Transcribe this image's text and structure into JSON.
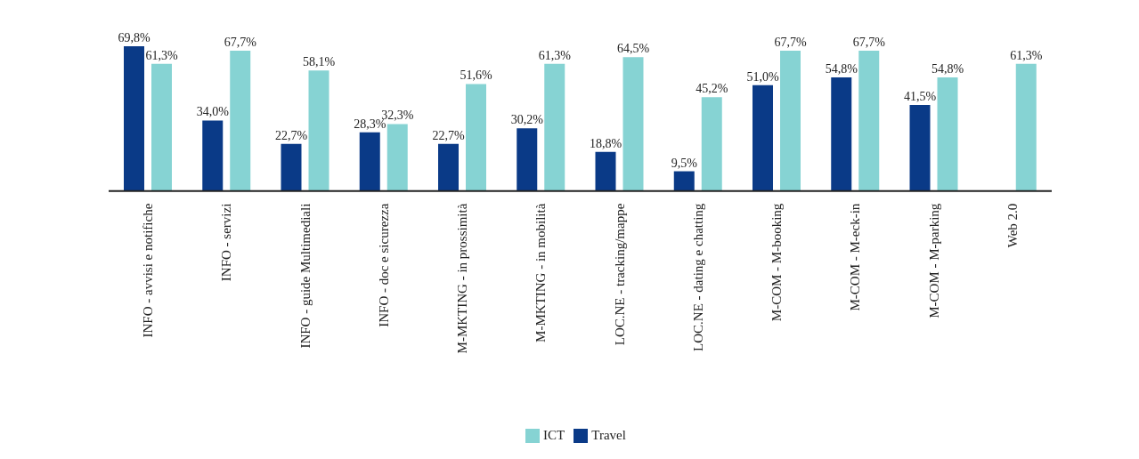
{
  "chart_data": {
    "type": "bar",
    "categories": [
      "INFO - avvisi e notifiche",
      "INFO - servizi",
      "INFO - guide Multimediali",
      "INFO - doc e sicurezza",
      "M-MKTING - in prossimità",
      "M-MKTING - in mobilità",
      "LOC.NE - tracking/mappe",
      "LOC.NE - dating e chatting",
      "M-COM - M-booking",
      "M-COM - M-eck-in",
      "M-COM - M-parking",
      "Web 2.0"
    ],
    "series": [
      {
        "name": "Travel",
        "color": "#0a3a87",
        "values": [
          69.8,
          34.0,
          22.7,
          28.3,
          22.7,
          30.2,
          18.8,
          9.5,
          51.0,
          54.8,
          41.5,
          null
        ],
        "value_labels": [
          "69,8%",
          "34,0%",
          "22,7%",
          "28,3%",
          "22,7%",
          "30,2%",
          "18,8%",
          "9,5%",
          "51,0%",
          "54,8%",
          "41,5%",
          null
        ]
      },
      {
        "name": "ICT",
        "color": "#86d3d3",
        "values": [
          61.3,
          67.7,
          58.1,
          32.3,
          51.6,
          61.3,
          64.5,
          45.2,
          67.7,
          67.7,
          54.8,
          61.3
        ],
        "value_labels": [
          "61,3%",
          "67,7%",
          "58,1%",
          "32,3%",
          "51,6%",
          "61,3%",
          "64,5%",
          "45,2%",
          "67,7%",
          "67,7%",
          "54,8%",
          "61,3%"
        ]
      }
    ],
    "legend": "bottom",
    "grid": false
  }
}
